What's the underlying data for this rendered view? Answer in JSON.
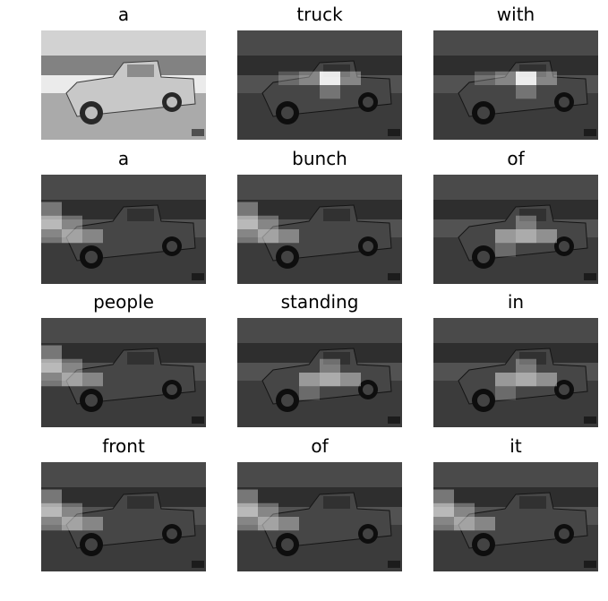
{
  "title": "",
  "panels": [
    {
      "word": "a",
      "attention": "none"
    },
    {
      "word": "truck",
      "attention": "center"
    },
    {
      "word": "with",
      "attention": "center"
    },
    {
      "word": "a",
      "attention": "left"
    },
    {
      "word": "bunch",
      "attention": "left"
    },
    {
      "word": "of",
      "attention": "center-bottom"
    },
    {
      "word": "people",
      "attention": "left"
    },
    {
      "word": "standing",
      "attention": "center-bottom"
    },
    {
      "word": "in",
      "attention": "center-bottom"
    },
    {
      "word": "front",
      "attention": "left"
    },
    {
      "word": "of",
      "attention": "left"
    },
    {
      "word": "it",
      "attention": "left"
    }
  ],
  "colors": {
    "background": "#ffffff",
    "text": "#000000"
  }
}
